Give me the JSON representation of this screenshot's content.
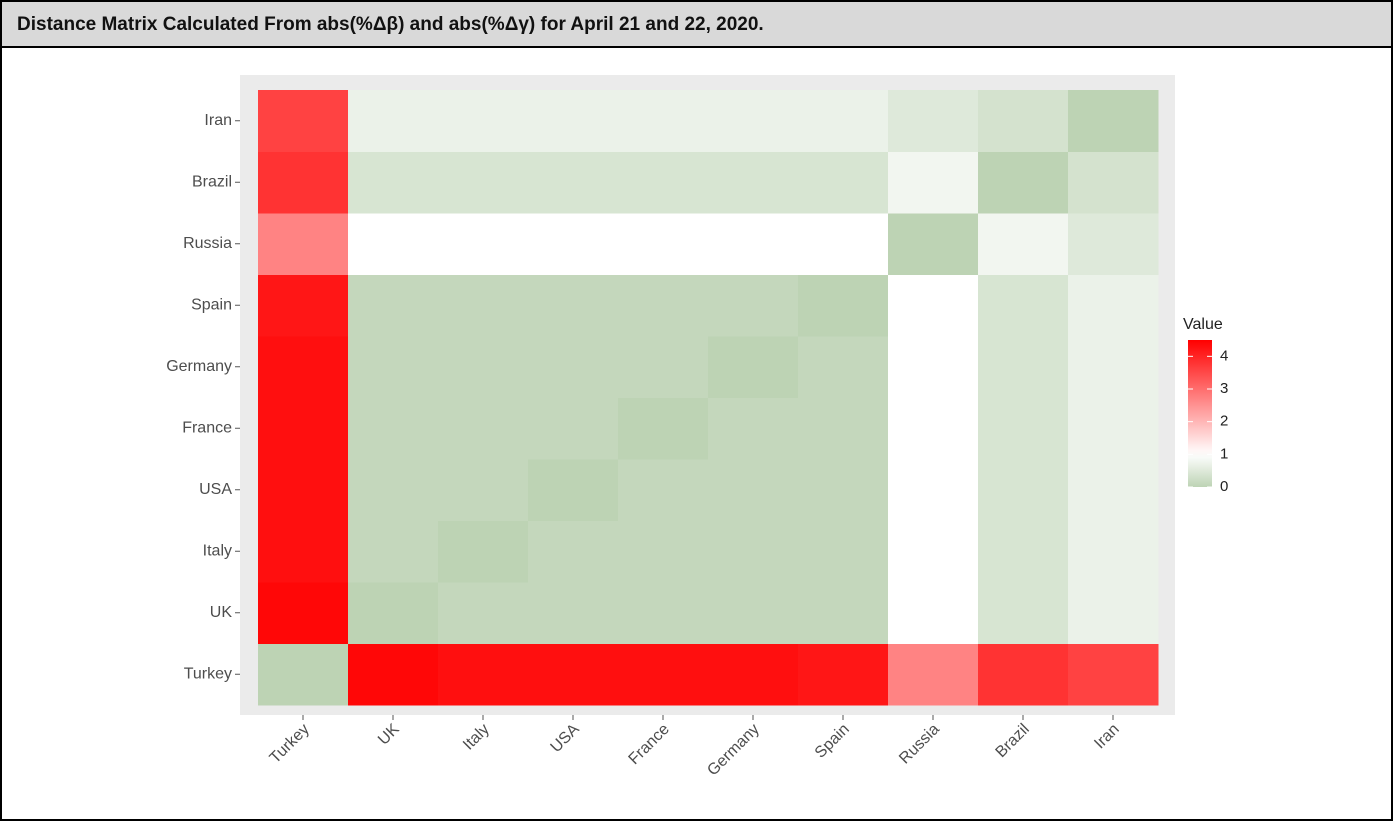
{
  "chart_data": {
    "type": "heatmap",
    "title": "Distance Matrix Calculated From abs(%Δβ) and abs(%Δγ) for April 21 and 22, 2020.",
    "categories": [
      "Turkey",
      "UK",
      "Italy",
      "USA",
      "France",
      "Germany",
      "Spain",
      "Russia",
      "Brazil",
      "Iran"
    ],
    "z": [
      [
        0,
        4.4,
        4.3,
        4.3,
        4.3,
        4.3,
        4.2,
        2.7,
        3.8,
        3.6
      ],
      [
        4.4,
        0,
        0.1,
        0.1,
        0.1,
        0.1,
        0.1,
        1.0,
        0.4,
        0.7
      ],
      [
        4.3,
        0.1,
        0,
        0.1,
        0.1,
        0.1,
        0.1,
        1.0,
        0.4,
        0.7
      ],
      [
        4.3,
        0.1,
        0.1,
        0,
        0.1,
        0.1,
        0.1,
        1.0,
        0.4,
        0.7
      ],
      [
        4.3,
        0.1,
        0.1,
        0.1,
        0,
        0.1,
        0.1,
        1.0,
        0.4,
        0.7
      ],
      [
        4.3,
        0.1,
        0.1,
        0.1,
        0.1,
        0,
        0.1,
        1.0,
        0.4,
        0.7
      ],
      [
        4.2,
        0.1,
        0.1,
        0.1,
        0.1,
        0.1,
        0,
        1.0,
        0.4,
        0.7
      ],
      [
        2.7,
        1.0,
        1.0,
        1.0,
        1.0,
        1.0,
        1.0,
        0,
        0.8,
        0.5
      ],
      [
        3.8,
        0.4,
        0.4,
        0.4,
        0.4,
        0.4,
        0.4,
        0.8,
        0,
        0.35
      ],
      [
        3.6,
        0.7,
        0.7,
        0.7,
        0.7,
        0.7,
        0.7,
        0.5,
        0.35,
        0
      ]
    ],
    "legend_title": "Value",
    "clim": [
      0,
      4.5
    ],
    "colorbar_ticks": [
      0,
      1,
      2,
      3,
      4
    ],
    "colors": {
      "low": "#bdd3b4",
      "mid": "#ffffff",
      "high": "#ff0000"
    },
    "midpoint": 1
  }
}
